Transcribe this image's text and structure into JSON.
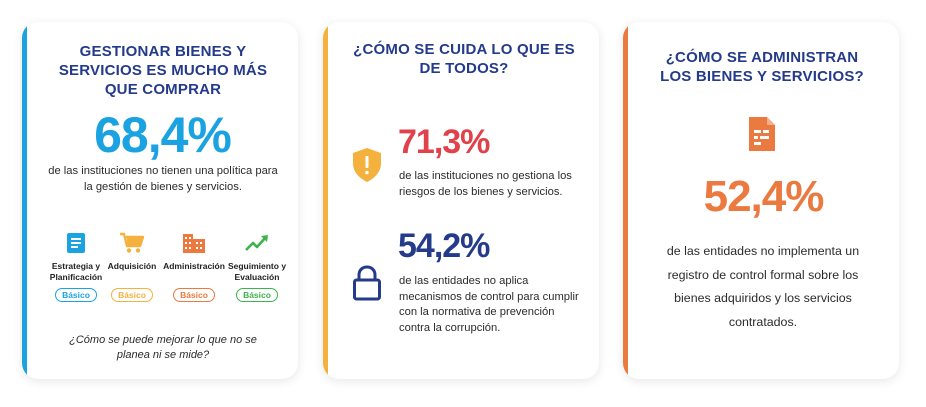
{
  "colors": {
    "navy": "#243a8a",
    "blue": "#1aa3e0",
    "yellow": "#f5b13d",
    "orange": "#ea7a3f",
    "green": "#3db44a",
    "red": "#e0414a"
  },
  "card1": {
    "title": "GESTIONAR BIENES Y SERVICIOS ES MUCHO MÁS QUE COMPRAR",
    "stat": "68,4%",
    "description": "de las instituciones no tienen una política para la gestión de bienes y servicios.",
    "categories": [
      {
        "label": "Estrategia y Planificación",
        "level": "Básico",
        "icon": "document-icon",
        "color": "#1aa3e0"
      },
      {
        "label": "Adquisición",
        "level": "Básico",
        "icon": "shopping-cart-icon",
        "color": "#f5b13d"
      },
      {
        "label": "Administración",
        "level": "Básico",
        "icon": "building-icon",
        "color": "#ea7a3f"
      },
      {
        "label": "Seguimiento y Evaluación",
        "level": "Básico",
        "icon": "trend-line-icon",
        "color": "#3db44a"
      }
    ],
    "question": "¿Cómo se puede mejorar lo que no se planea ni se mide?"
  },
  "card2": {
    "title": "¿CÓMO SE CUIDA LO QUE ES DE TODOS?",
    "stat1": "71,3%",
    "description1": "de las instituciones no gestiona los riesgos de los bienes y servicios.",
    "icon1": "warning-shield-icon",
    "stat2": "54,2%",
    "description2": "de las entidades no aplica mecanismos de control para cumplir con la normativa de prevención contra la corrupción.",
    "icon2": "lock-icon"
  },
  "card3": {
    "title": "¿CÓMO SE ADMINISTRAN LOS BIENES Y SERVICIOS?",
    "icon": "document-icon",
    "stat": "52,4%",
    "description": "de las entidades no implementa un registro de control formal sobre los bienes adquiridos y los servicios contratados."
  }
}
